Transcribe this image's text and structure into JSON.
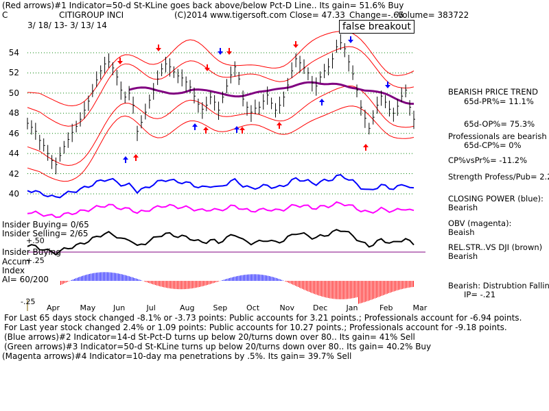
{
  "chart_data": {
    "type": "line",
    "title": "CITIGROUP INCI",
    "ticker": "C",
    "date_range": "3/ 18/ 13- 3/ 13/ 14",
    "copyright": "(C)2014 www.tigersoft.com",
    "close_text": "Close=  47.33",
    "change_text": "Change=-.65",
    "volume_text": "Volume= 383722",
    "annotation": "false breakout",
    "y_ticks": [
      "54",
      "52",
      "50",
      "48",
      "46",
      "44",
      "42",
      "40"
    ],
    "y_tick_values": [
      54,
      52,
      50,
      48,
      46,
      44,
      42,
      40
    ],
    "ylim": [
      38.5,
      55.5
    ],
    "x_ticks": [
      "Apr",
      "May",
      "Jun",
      "Jul",
      "Aug",
      "Sep",
      "Oct",
      "Nov",
      "Dec",
      "Jan",
      "Feb",
      "Mar"
    ],
    "price_close": [
      47.0,
      46.6,
      46.2,
      45.3,
      44.8,
      44.0,
      43.3,
      42.9,
      43.8,
      44.7,
      45.4,
      46.1,
      46.7,
      47.4,
      48.3,
      49.2,
      50.2,
      51.3,
      52.2,
      52.9,
      53.1,
      52.5,
      51.6,
      50.3,
      49.6,
      50.0,
      48.8,
      46.2,
      47.1,
      48.1,
      49.3,
      50.3,
      51.4,
      52.4,
      52.9,
      52.6,
      52.1,
      51.7,
      51.5,
      51.1,
      50.6,
      49.7,
      48.9,
      48.4,
      48.8,
      49.6,
      49.1,
      48.3,
      49.6,
      50.7,
      51.8,
      52.6,
      51.4,
      49.4,
      48.6,
      48.1,
      48.5,
      48.6,
      49.2,
      49.8,
      49.0,
      48.3,
      48.8,
      49.6,
      50.8,
      52.2,
      53.4,
      53.0,
      52.5,
      52.0,
      51.0,
      50.7,
      51.6,
      52.2,
      52.6,
      53.4,
      54.6,
      55.0,
      54.4,
      53.1,
      51.9,
      50.3,
      48.6,
      47.5,
      46.5,
      47.6,
      48.8,
      49.7,
      49.1,
      48.4,
      48.0,
      48.7,
      49.7,
      50.3,
      48.6,
      47.4
    ],
    "series": [
      {
        "name": "CLOSING POWER (blue)",
        "status": "Bearish",
        "color": "#0000ff"
      },
      {
        "name": "OBV (magenta)",
        "status": "Beaish",
        "color": "#ff00ff"
      },
      {
        "name": "REL.STR..VS DJI (brown)",
        "status": "Bearish",
        "color": "#000000"
      }
    ]
  },
  "header": {
    "line1": "(Red arrows)#1 Indicator=50-d St-KLine goes back above/below Pct-D Line.. Its gain= 51.6% Buy"
  },
  "right_panel": {
    "trend_title": "BEARISH PRICE TREND",
    "pr_65d": "65d-PR%= 11.1%",
    "op_65d": "65d-OP%= 75.3%",
    "professionals": "Professionals are bearish",
    "cp_65d": "65d-CP%= 0%",
    "cp_vs_pr": "CP%vsPr%= -11.2%",
    "strength": "Strength Profess/Pub= 2.2",
    "cp_label": "CLOSING POWER (blue):",
    "cp_status": "Bearish",
    "obv_label": "OBV (magenta):",
    "obv_status": "Beaish",
    "rs_label": "REL.STR..VS DJI (brown)",
    "rs_status": "Bearish",
    "dist_label": "Bearish: Distrubtion Falling",
    "ip": "IP= -.21"
  },
  "left_panel": {
    "insider_buying": "Insider Buying= 0/65",
    "insider_selling": "Insider Selling= 2/65",
    "insider_buying2": "Insider Buying",
    "accum": "Accum",
    "index": "Index",
    "ai": "AI= 60/200",
    "plus50": "+.50",
    "plus25": "+.25",
    "minus25": "-.25"
  },
  "footer": {
    "line1": "For Last 65 days stock changed -8.1% or -3.73 points:  Public accounts for  3.21 points.;  Professionals account for -6.94 points.",
    "line2": "For Last year stock changed  2.4% or  1.09 points:  Public accounts for  10.27 points.;  Professionals account for -9.18 points.",
    "line3": "(Blue arrows)#2 Indicator=14-d St-Pct-D turns up below 20/turns down over 80.. Its gain= 41% Sell",
    "line4": "(Green arrows)#3 Indicator=50-d St-KLine turns up below 20/turns down over 80.. Its gain= 40.2% Buy",
    "line5": "(Magenta arrows)#4 Indicator=10-day ma penetrations by .5%. Its gain= 39.7% Sell"
  },
  "colors": {
    "band": "#ff0000",
    "ma": "#800080",
    "closing_power": "#0000ff",
    "obv": "#ff00ff",
    "rel_strength": "#000000",
    "accum_pos": "#0000ff",
    "accum_neg": "#ff0000",
    "grid": "#008000"
  }
}
